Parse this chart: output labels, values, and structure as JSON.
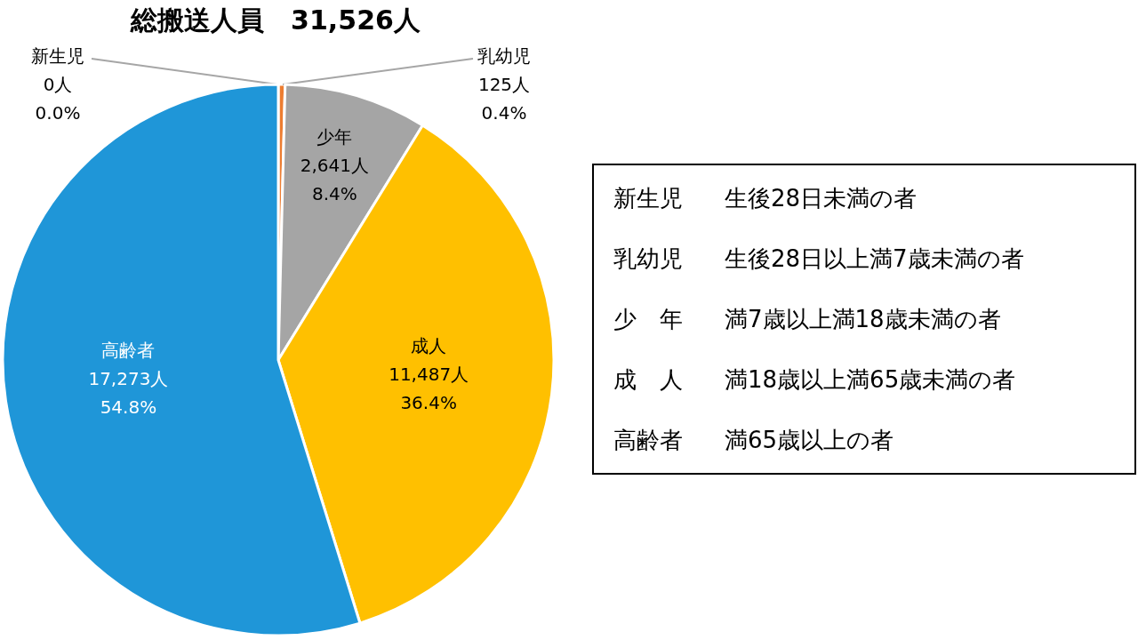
{
  "chart_data": {
    "type": "pie",
    "title": "総搬送人員　31,526人",
    "categories": [
      "新生児",
      "乳幼児",
      "少年",
      "成人",
      "高齢者"
    ],
    "values": [
      0,
      125,
      2641,
      11487,
      17273
    ],
    "colors": [
      "#4472c4",
      "#ed7d31",
      "#a5a5a5",
      "#ffc000",
      "#1f96d8"
    ],
    "value_labels": [
      "0人 0.0%",
      "125人 0.4%",
      "2,641人 8.4%",
      "11,487人 36.4%",
      "17,273人 54.8%"
    ],
    "annotations": [
      "新生児 生後28日未満の者",
      "乳幼児 生後28日以上満7歳未満の者",
      "少　年 満7歳以上満18歳未満の者",
      "成　人 満18歳以上満65歳未満の者",
      "高齢者 満65歳以上の者"
    ]
  }
}
